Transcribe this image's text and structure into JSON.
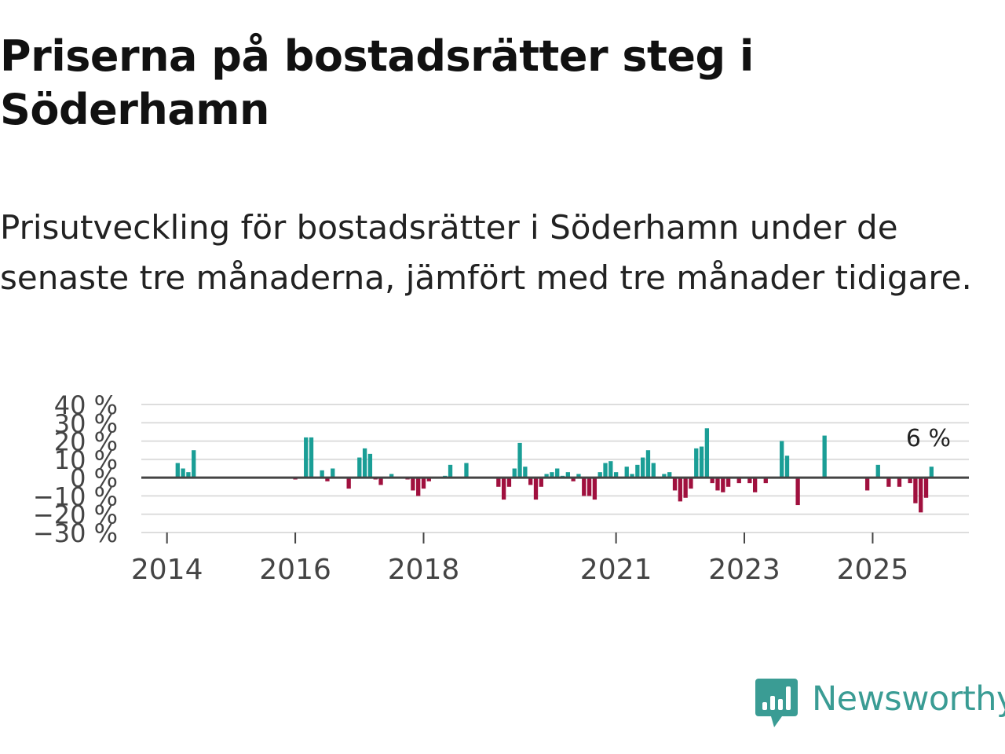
{
  "title": "Priserna på bostadsrätter steg i Söderhamn",
  "subtitle": "Prisutveckling för bostadsrätter i Söderhamn under de senaste tre månaderna, jämfört med tre månader tidigare.",
  "brand": {
    "name": "Newsworthy",
    "color": "#3a9c94"
  },
  "colors": {
    "positive": "#1a9e96",
    "negative": "#a0103e",
    "grid": "#dddddd",
    "zero_line": "#444444",
    "axis_text": "#444444"
  },
  "chart_data": {
    "type": "bar",
    "title": "Priserna på bostadsrätter steg i Söderhamn",
    "xlabel": "",
    "ylabel": "",
    "ylim": [
      -30,
      40
    ],
    "y_ticks": [
      40,
      30,
      20,
      10,
      0,
      -10,
      -20,
      -30
    ],
    "y_tick_labels": [
      "40 %",
      "30 %",
      "20 %",
      "10 %",
      "0 %",
      "−10 %",
      "−20 %",
      "−30 %"
    ],
    "x_ticks": [
      {
        "year": 2014,
        "label": "2014"
      },
      {
        "year": 2016,
        "label": "2016"
      },
      {
        "year": 2018,
        "label": "2018"
      },
      {
        "year": 2021,
        "label": "2021"
      },
      {
        "year": 2023,
        "label": "2023"
      },
      {
        "year": 2025,
        "label": "2025"
      }
    ],
    "x_range": [
      2013.6,
      2026.5
    ],
    "last_value_label": "6 %",
    "series": [
      {
        "name": "Prisutveckling",
        "unit": "%",
        "points": [
          {
            "date": "2014-03",
            "value": 8
          },
          {
            "date": "2014-04",
            "value": 5
          },
          {
            "date": "2014-05",
            "value": 3
          },
          {
            "date": "2014-06",
            "value": 15
          },
          {
            "date": "2016-01",
            "value": -1
          },
          {
            "date": "2016-03",
            "value": 22
          },
          {
            "date": "2016-04",
            "value": 22
          },
          {
            "date": "2016-06",
            "value": 4
          },
          {
            "date": "2016-07",
            "value": -2
          },
          {
            "date": "2016-08",
            "value": 5
          },
          {
            "date": "2016-11",
            "value": -6
          },
          {
            "date": "2017-01",
            "value": 11
          },
          {
            "date": "2017-02",
            "value": 16
          },
          {
            "date": "2017-03",
            "value": 13
          },
          {
            "date": "2017-04",
            "value": -1
          },
          {
            "date": "2017-05",
            "value": -4
          },
          {
            "date": "2017-07",
            "value": 2
          },
          {
            "date": "2017-10",
            "value": -1
          },
          {
            "date": "2017-11",
            "value": -7
          },
          {
            "date": "2017-12",
            "value": -10
          },
          {
            "date": "2018-01",
            "value": -6
          },
          {
            "date": "2018-02",
            "value": -2
          },
          {
            "date": "2018-05",
            "value": 1
          },
          {
            "date": "2018-06",
            "value": 7
          },
          {
            "date": "2018-09",
            "value": 8
          },
          {
            "date": "2019-03",
            "value": -5
          },
          {
            "date": "2019-04",
            "value": -12
          },
          {
            "date": "2019-05",
            "value": -5
          },
          {
            "date": "2019-06",
            "value": 5
          },
          {
            "date": "2019-07",
            "value": 19
          },
          {
            "date": "2019-08",
            "value": 6
          },
          {
            "date": "2019-09",
            "value": -4
          },
          {
            "date": "2019-10",
            "value": -12
          },
          {
            "date": "2019-11",
            "value": -5
          },
          {
            "date": "2019-12",
            "value": 2
          },
          {
            "date": "2020-01",
            "value": 3
          },
          {
            "date": "2020-02",
            "value": 5
          },
          {
            "date": "2020-03",
            "value": 1
          },
          {
            "date": "2020-04",
            "value": 3
          },
          {
            "date": "2020-05",
            "value": -2
          },
          {
            "date": "2020-06",
            "value": 2
          },
          {
            "date": "2020-07",
            "value": -10
          },
          {
            "date": "2020-08",
            "value": -10
          },
          {
            "date": "2020-09",
            "value": -12
          },
          {
            "date": "2020-10",
            "value": 3
          },
          {
            "date": "2020-11",
            "value": 8
          },
          {
            "date": "2020-12",
            "value": 9
          },
          {
            "date": "2021-01",
            "value": 3
          },
          {
            "date": "2021-03",
            "value": 6
          },
          {
            "date": "2021-04",
            "value": 2
          },
          {
            "date": "2021-05",
            "value": 7
          },
          {
            "date": "2021-06",
            "value": 11
          },
          {
            "date": "2021-07",
            "value": 15
          },
          {
            "date": "2021-08",
            "value": 8
          },
          {
            "date": "2021-10",
            "value": 2
          },
          {
            "date": "2021-11",
            "value": 3
          },
          {
            "date": "2021-12",
            "value": -7
          },
          {
            "date": "2022-01",
            "value": -13
          },
          {
            "date": "2022-02",
            "value": -11
          },
          {
            "date": "2022-03",
            "value": -6
          },
          {
            "date": "2022-04",
            "value": 16
          },
          {
            "date": "2022-05",
            "value": 17
          },
          {
            "date": "2022-06",
            "value": 27
          },
          {
            "date": "2022-07",
            "value": -3
          },
          {
            "date": "2022-08",
            "value": -7
          },
          {
            "date": "2022-09",
            "value": -8
          },
          {
            "date": "2022-10",
            "value": -5
          },
          {
            "date": "2022-12",
            "value": -3
          },
          {
            "date": "2023-02",
            "value": -3
          },
          {
            "date": "2023-03",
            "value": -8
          },
          {
            "date": "2023-05",
            "value": -3
          },
          {
            "date": "2023-08",
            "value": 20
          },
          {
            "date": "2023-09",
            "value": 12
          },
          {
            "date": "2023-11",
            "value": -15
          },
          {
            "date": "2024-04",
            "value": 23
          },
          {
            "date": "2024-12",
            "value": -7
          },
          {
            "date": "2025-02",
            "value": 7
          },
          {
            "date": "2025-04",
            "value": -5
          },
          {
            "date": "2025-06",
            "value": -5
          },
          {
            "date": "2025-08",
            "value": -3
          },
          {
            "date": "2025-09",
            "value": -14
          },
          {
            "date": "2025-10",
            "value": -19
          },
          {
            "date": "2025-11",
            "value": -11
          },
          {
            "date": "2025-12",
            "value": 6
          }
        ]
      }
    ]
  }
}
